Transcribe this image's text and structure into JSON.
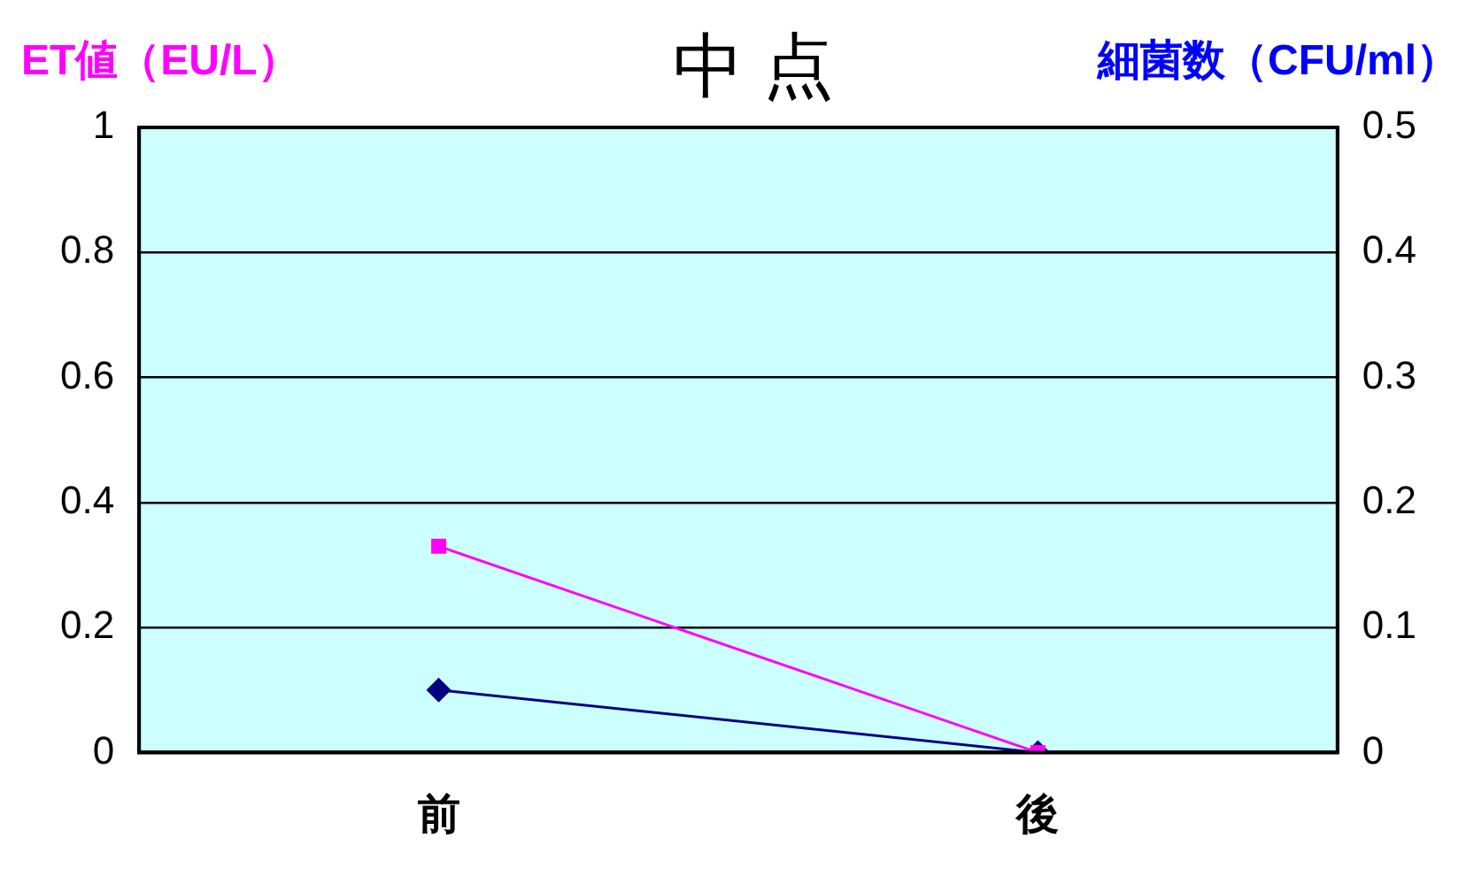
{
  "chart_data": {
    "type": "line",
    "title": "中 点",
    "ylabel": "ET値（EU/L）",
    "y2label": "細菌数（CFU/ml）",
    "categories": [
      "前",
      "後"
    ],
    "series": [
      {
        "color": "#ff00ff",
        "values": [
          0.33,
          0
        ],
        "marker": "square"
      },
      {
        "color": "#000080",
        "values": [
          0.05,
          0
        ],
        "marker": "diamond",
        "axis": "y2"
      }
    ],
    "ylim": [
      0,
      1
    ],
    "yticks": [
      0,
      0.2,
      0.4,
      0.6,
      0.8,
      1
    ],
    "y2lim": [
      0,
      0.5
    ],
    "y2ticks": [
      0,
      0.1,
      0.2,
      0.3,
      0.4,
      0.5
    ],
    "grid": "y",
    "legend": false
  }
}
